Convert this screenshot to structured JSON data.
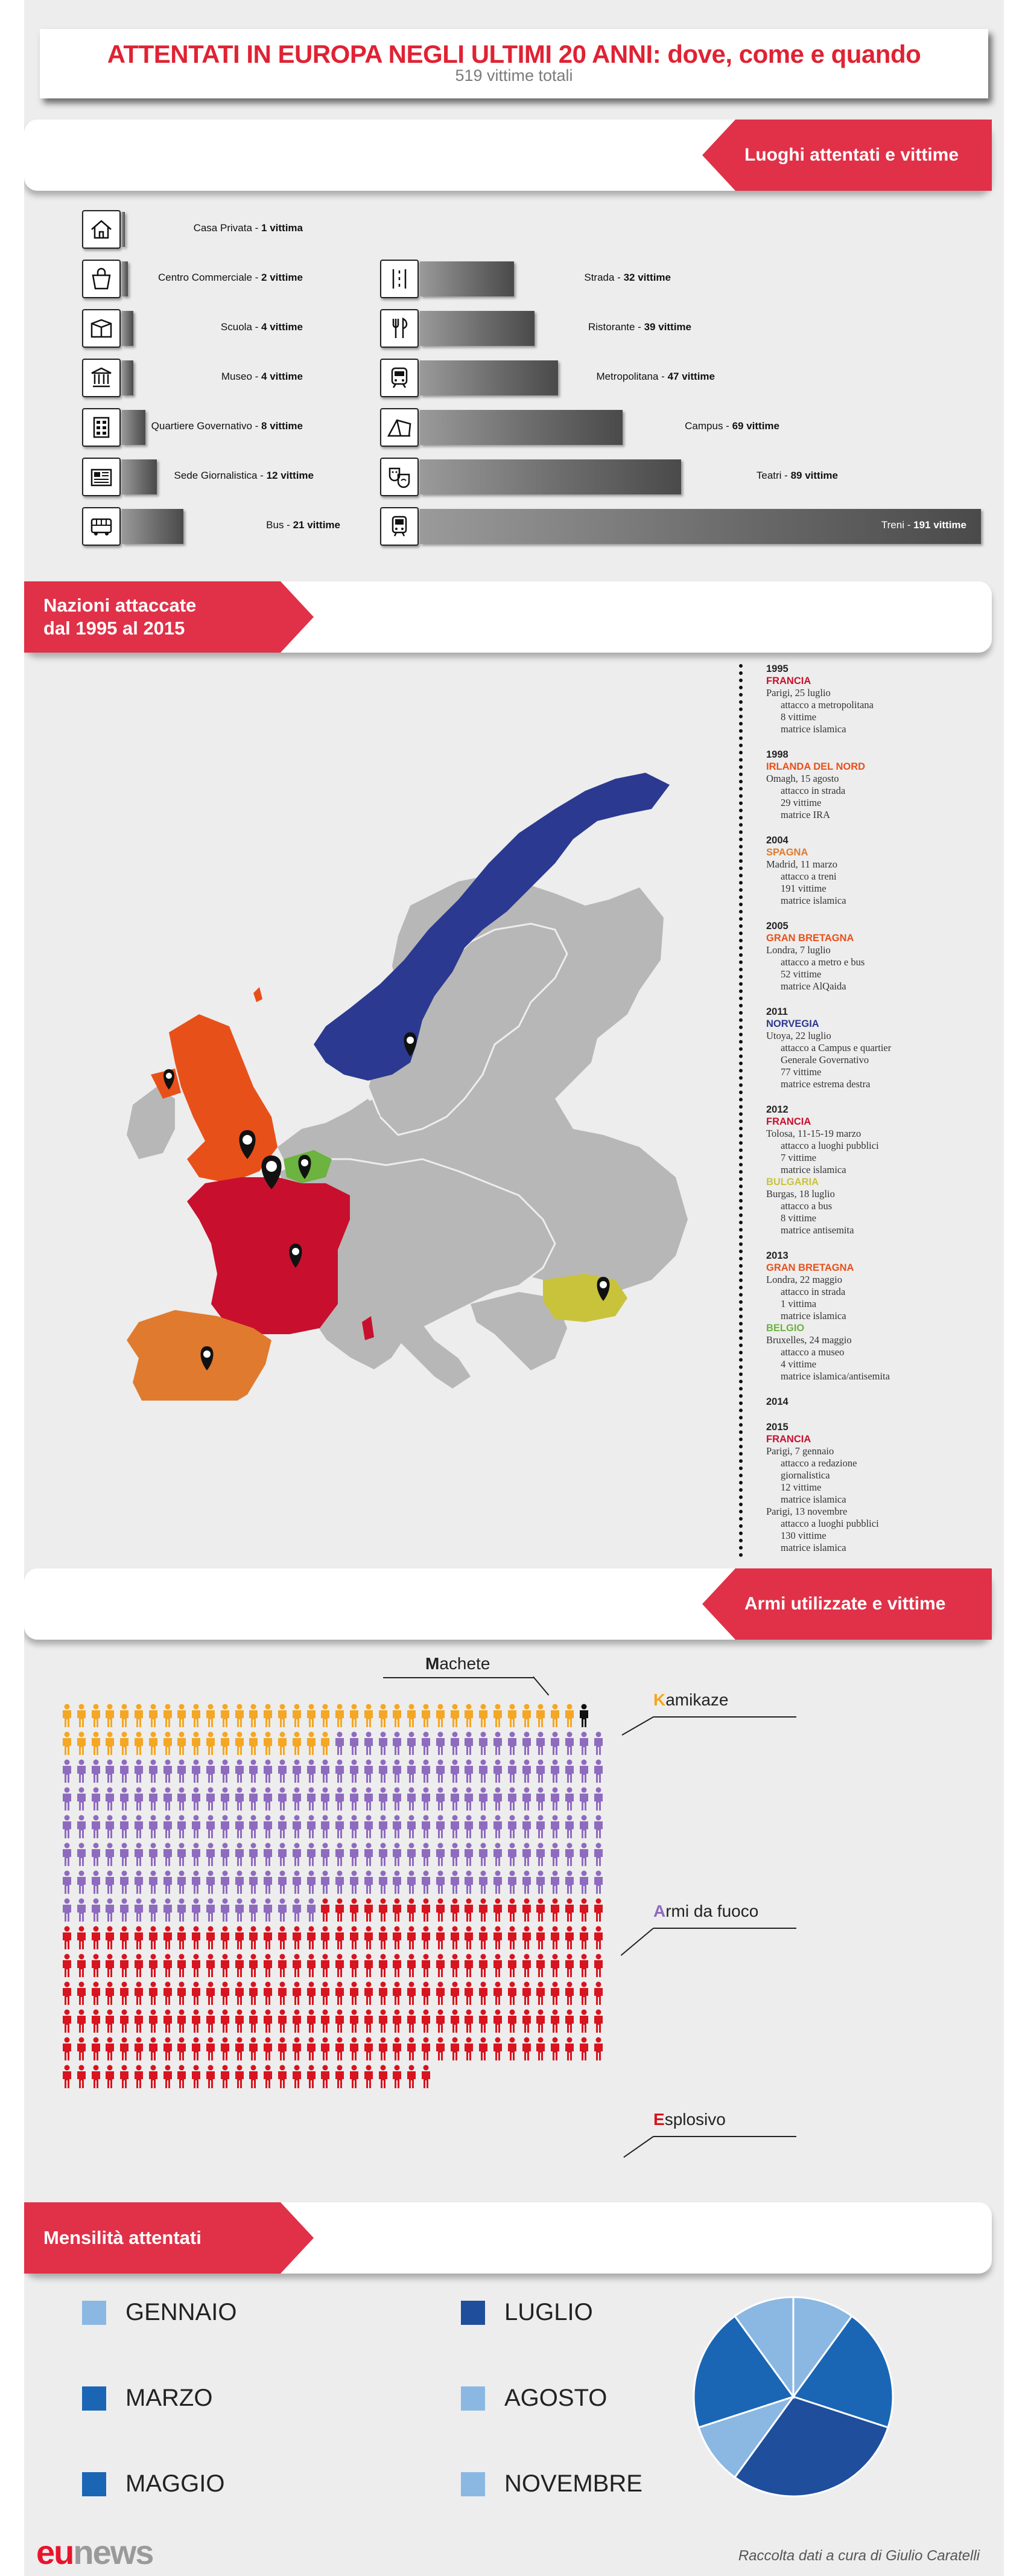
{
  "title": "ATTENTATI IN EUROPA NEGLI ULTIMI 20 ANNI: dove, come e quando",
  "subtitle": "519 vittime totali",
  "sections": {
    "places": "Luoghi attentati e vittime",
    "nations_line1": "Nazioni attaccate",
    "nations_line2": "dal 1995 al 2015",
    "weapons": "Armi utilizzate e vittime",
    "months": "Mensilità attentati"
  },
  "places_left": [
    {
      "label": "Casa Privata - ",
      "value": "1 vittima",
      "icon": "house-icon",
      "victims": 1
    },
    {
      "label": "Centro Commerciale - ",
      "value": "2 vittime",
      "icon": "shopping-bag-icon",
      "victims": 2
    },
    {
      "label": "Scuola - ",
      "value": "4 vittime",
      "icon": "school-icon",
      "victims": 4
    },
    {
      "label": "Museo - ",
      "value": "4 vittime",
      "icon": "museum-icon",
      "victims": 4
    },
    {
      "label": "Quartiere Governativo - ",
      "value": "8 vittime",
      "icon": "building-icon",
      "victims": 8
    },
    {
      "label": "Sede Giornalistica - ",
      "value": "12 vittime",
      "icon": "newspaper-icon",
      "victims": 12
    },
    {
      "label": "Bus - ",
      "value": "21 vittime",
      "icon": "bus-icon",
      "victims": 21
    }
  ],
  "places_right": [
    {
      "label": "Strada - ",
      "value": "32 vittime",
      "icon": "road-icon",
      "victims": 32
    },
    {
      "label": "Ristorante - ",
      "value": "39 vittime",
      "icon": "cutlery-icon",
      "victims": 39
    },
    {
      "label": "Metropolitana - ",
      "value": "47 vittime",
      "icon": "subway-icon",
      "victims": 47
    },
    {
      "label": "Campus - ",
      "value": "69 vittime",
      "icon": "tent-icon",
      "victims": 69
    },
    {
      "label": "Teatri - ",
      "value": "89 vittime",
      "icon": "theater-masks-icon",
      "victims": 89
    },
    {
      "label": "Treni - ",
      "value": "191 vittime",
      "icon": "train-icon",
      "victims": 191
    }
  ],
  "timeline": [
    {
      "year": "1995",
      "nation": "FRANCIA",
      "color": "#c8102e",
      "lines": [
        "Parigi, 25 luglio"
      ],
      "details": [
        "attacco a metropolitana",
        "8 vittime",
        "matrice islamica"
      ]
    },
    {
      "year": "1998",
      "nation": "IRLANDA DEL NORD",
      "color": "#e8501a",
      "lines": [
        "Omagh, 15 agosto"
      ],
      "details": [
        "attacco in strada",
        "29 vittime",
        "matrice IRA"
      ]
    },
    {
      "year": "2004",
      "nation": "SPAGNA",
      "color": "#e07a2e",
      "lines": [
        "Madrid, 11 marzo"
      ],
      "details": [
        "attacco a treni",
        "191 vittime",
        "matrice islamica"
      ]
    },
    {
      "year": "2005",
      "nation": "GRAN BRETAGNA",
      "color": "#e8501a",
      "lines": [
        "Londra, 7 luglio"
      ],
      "details": [
        "attacco a metro e bus",
        "52 vittime",
        "matrice AlQaida"
      ]
    },
    {
      "year": "2011",
      "nation": "NORVEGIA",
      "color": "#2b3990",
      "lines": [
        "Utoya, 22 luglio"
      ],
      "details": [
        "attacco a Campus e quartier",
        "Generale Governativo",
        "77 vittime",
        "matrice estrema destra"
      ]
    },
    {
      "year": "2012",
      "nation": "FRANCIA",
      "color": "#c8102e",
      "lines": [
        "Tolosa, 11-15-19 marzo"
      ],
      "details": [
        "attacco a luoghi pubblici",
        "7 vittime",
        "matrice islamica"
      ],
      "nation2": "BULGARIA",
      "color2": "#c9c33c",
      "lines2": [
        "Burgas, 18 luglio"
      ],
      "details2": [
        "attacco a bus",
        "8 vittime",
        "matrice antisemita"
      ]
    },
    {
      "year": "2013",
      "nation": "GRAN BRETAGNA",
      "color": "#e8501a",
      "lines": [
        "Londra, 22 maggio"
      ],
      "details": [
        "attacco in strada",
        "1 vittima",
        "matrice islamica"
      ],
      "nation2": "BELGIO",
      "color2": "#6cb33f",
      "lines2": [
        "Bruxelles, 24 maggio"
      ],
      "details2": [
        "attacco a museo",
        "4 vittime",
        "matrice islamica/antisemita"
      ]
    },
    {
      "year": "2014",
      "nation": "",
      "color": "#000",
      "lines": [],
      "details": []
    },
    {
      "year": "2015",
      "nation": "FRANCIA",
      "color": "#c8102e",
      "lines": [
        "Parigi, 7 gennaio"
      ],
      "details": [
        "attacco a redazione",
        "giornalistica",
        "12 vittime",
        "matrice islamica"
      ],
      "lines2": [
        "Parigi, 13 novembre"
      ],
      "details2": [
        "attacco a luoghi pubblici",
        "130 vittime",
        "matrice islamica"
      ]
    }
  ],
  "map": {
    "countries": {
      "norway": "#2b3990",
      "uk": "#e8501a",
      "ireland": "#e8501a",
      "france": "#c8102e",
      "spain": "#e07a2e",
      "belgium": "#6cb33f",
      "bulgaria": "#c9c33c",
      "other": "#b7b7b7"
    }
  },
  "weapons": {
    "machete_label_first": "M",
    "machete_label_rest": "achete",
    "kamikaze_first": "K",
    "kamikaze_rest": "amikaze",
    "firearms_first": "A",
    "firearms_rest": "rmi da fuoco",
    "explosive_first": "E",
    "explosive_rest": "splosivo",
    "counts": {
      "machete": 1,
      "kamikaze": 55,
      "firearms": 227,
      "explosive": 236
    },
    "colors": {
      "machete": "#111111",
      "kamikaze": "#f5a623",
      "firearms": "#8e6bbf",
      "explosive": "#d7141f"
    }
  },
  "months": [
    {
      "label": "GENNAIO",
      "color": "#8ab8e2"
    },
    {
      "label": "LUGLIO",
      "color": "#1f4e9c"
    },
    {
      "label": "MARZO",
      "color": "#1a66b5"
    },
    {
      "label": "AGOSTO",
      "color": "#8ab8e2"
    },
    {
      "label": "MAGGIO",
      "color": "#1a66b5"
    },
    {
      "label": "NOVEMBRE",
      "color": "#8ab8e2"
    }
  ],
  "chart_data": {
    "type": "pie",
    "categories": [
      "GENNAIO",
      "MARZO",
      "MAGGIO",
      "LUGLIO",
      "AGOSTO",
      "NOVEMBRE"
    ],
    "values": [
      1,
      2,
      2,
      3,
      1,
      1
    ],
    "colors": [
      "#8ab8e2",
      "#1a66b5",
      "#1a66b5",
      "#1f4e9c",
      "#8ab8e2",
      "#8ab8e2"
    ]
  },
  "footer": {
    "logo_eu": "eu",
    "logo_news": "news",
    "credit": "Raccolta dati a cura di Giulio Caratelli"
  }
}
